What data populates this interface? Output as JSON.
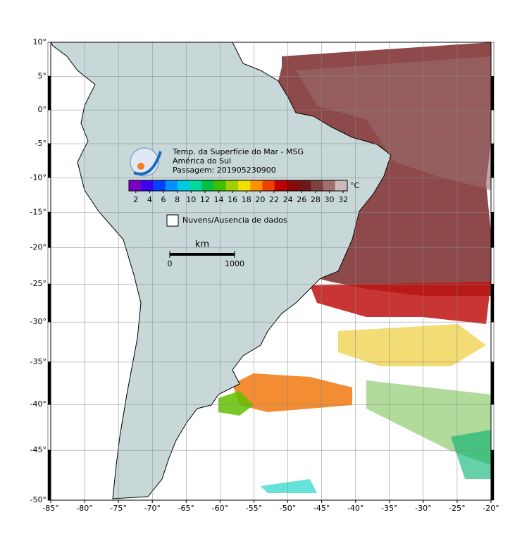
{
  "map": {
    "projection": "mercator",
    "xlim": [
      -85,
      -20
    ],
    "ylim": [
      -50,
      10
    ],
    "xticks": [
      {
        "value": -85,
        "label": "-85°"
      },
      {
        "value": -80,
        "label": "-80°"
      },
      {
        "value": -75,
        "label": "-75°"
      },
      {
        "value": -70,
        "label": "-70°"
      },
      {
        "value": -65,
        "label": "-65°"
      },
      {
        "value": -60,
        "label": "-60°"
      },
      {
        "value": -55,
        "label": "-55°"
      },
      {
        "value": -50,
        "label": "-50°"
      },
      {
        "value": -45,
        "label": "-45°"
      },
      {
        "value": -40,
        "label": "-40°"
      },
      {
        "value": -35,
        "label": "-35°"
      },
      {
        "value": -30,
        "label": "-30°"
      },
      {
        "value": -25,
        "label": "-25°"
      },
      {
        "value": -20,
        "label": "-20°"
      }
    ],
    "yticks": [
      {
        "value": 10,
        "label": "10°"
      },
      {
        "value": 5,
        "label": "5°"
      },
      {
        "value": 0,
        "label": "0°"
      },
      {
        "value": -5,
        "label": "-5°"
      },
      {
        "value": -10,
        "label": "-10°"
      },
      {
        "value": -15,
        "label": "-15°"
      },
      {
        "value": -20,
        "label": "-20°"
      },
      {
        "value": -25,
        "label": "-25°"
      },
      {
        "value": -30,
        "label": "-30°"
      },
      {
        "value": -35,
        "label": "-35°"
      },
      {
        "value": -40,
        "label": "-40°"
      },
      {
        "value": -45,
        "label": "-45°"
      },
      {
        "value": -50,
        "label": "-50°"
      }
    ],
    "title": "Temp. da Superfície do Mar - MSG",
    "region": "América do Sul",
    "pass": "Passagem: 201905230900",
    "colorbar": {
      "clim": [
        1,
        32.6
      ],
      "ticks": [
        2,
        4,
        6,
        8,
        10,
        12,
        14,
        16,
        18,
        20,
        22,
        24,
        26,
        28,
        30,
        32
      ],
      "unit": "°C",
      "colors": [
        "#7a00c8",
        "#3a00f0",
        "#0040ff",
        "#0090ff",
        "#00c8e0",
        "#00d8a0",
        "#00c040",
        "#40c000",
        "#a0d000",
        "#f0e000",
        "#ff9000",
        "#f04000",
        "#c00000",
        "#8a0a0a",
        "#701818",
        "#804040",
        "#a07070",
        "#d0b8b8"
      ]
    },
    "clouds_legend": "Nuvens/Ausencia de dados",
    "scale": {
      "unit": "km",
      "ticks": [
        0,
        1000
      ]
    }
  }
}
